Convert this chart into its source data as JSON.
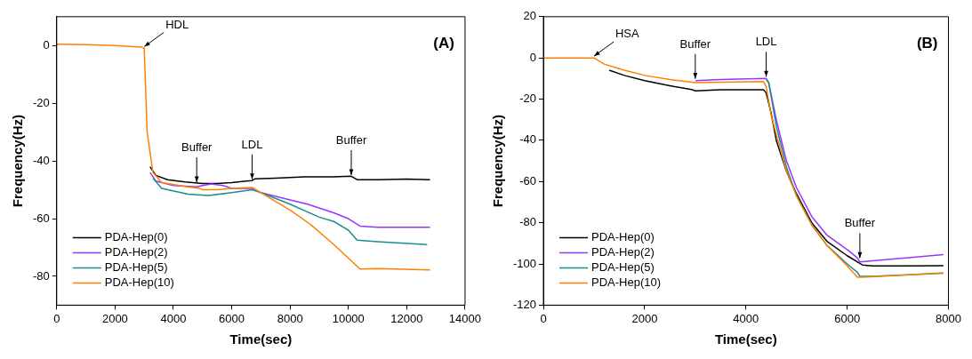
{
  "chart_data": [
    {
      "type": "line",
      "title": "(A)",
      "xlabel": "Time(sec)",
      "ylabel": "Frequency(Hz)",
      "xlim": [
        0,
        14000
      ],
      "xticks": [
        0,
        2000,
        4000,
        6000,
        8000,
        10000,
        12000,
        14000
      ],
      "ylim": [
        -90,
        10
      ],
      "yticks": [
        -80,
        -60,
        -40,
        -20,
        0
      ],
      "grid": false,
      "legend": "bottom left",
      "marker": "none",
      "line_style": "solid",
      "annotations": [
        {
          "text": "HDL",
          "x": 3000,
          "y": -1
        },
        {
          "text": "Buffer",
          "x": 4800,
          "y": -48
        },
        {
          "text": "LDL",
          "x": 6700,
          "y": -47
        },
        {
          "text": "Buffer",
          "x": 10100,
          "y": -45.5
        }
      ],
      "series": [
        {
          "name": "PDA-Hep(0)",
          "color": "#000000",
          "x": [
            3200,
            3400,
            3800,
            4400,
            5000,
            5500,
            6000,
            6500,
            6700,
            6800,
            7500,
            8500,
            9500,
            10100,
            10300,
            11000,
            12000,
            12800
          ],
          "values": [
            -42,
            -45,
            -46.5,
            -47.3,
            -47.8,
            -47.8,
            -47.5,
            -47,
            -46.8,
            -46.2,
            -46,
            -45.5,
            -45.5,
            -45.3,
            -46.5,
            -46.5,
            -46.3,
            -46.5
          ]
        },
        {
          "name": "PDA-Hep(2)",
          "color": "#9933ff",
          "x": [
            3200,
            3400,
            4000,
            4800,
            5000,
            5300,
            5700,
            6000,
            6700,
            7000,
            8000,
            8600,
            9500,
            10000,
            10400,
            11000,
            12800
          ],
          "values": [
            -44,
            -47,
            -48.5,
            -49,
            -48.5,
            -48,
            -48.5,
            -49.5,
            -49.5,
            -51,
            -53.5,
            -55,
            -58,
            -60,
            -62.6,
            -63,
            -63
          ]
        },
        {
          "name": "PDA-Hep(5)",
          "color": "#1a8f8f",
          "x": [
            3300,
            3600,
            4500,
            5200,
            6000,
            6700,
            7000,
            8000,
            9000,
            9500,
            10000,
            10300,
            11000,
            12700
          ],
          "values": [
            -46,
            -49.5,
            -51.5,
            -52,
            -51,
            -50,
            -51,
            -55,
            -59.5,
            -61,
            -64,
            -67.5,
            -68,
            -69
          ]
        },
        {
          "name": "PDA-Hep(10)",
          "color": "#ff8000",
          "x": [
            0,
            1000,
            2000,
            2900,
            3000,
            3100,
            3300,
            3600,
            4500,
            4900,
            5000,
            5500,
            6000,
            6700,
            7000,
            8000,
            8700,
            9500,
            10400,
            11000,
            12800
          ],
          "values": [
            0.5,
            0.3,
            0,
            -0.5,
            -1,
            -30,
            -44,
            -47.5,
            -49,
            -49.5,
            -50,
            -50,
            -49.5,
            -49.2,
            -51,
            -57,
            -62,
            -69,
            -77.5,
            -77.3,
            -77.8
          ]
        }
      ]
    },
    {
      "type": "line",
      "title": "(B)",
      "xlabel": "Time(sec)",
      "ylabel": "Frequency(Hz)",
      "xlim": [
        0,
        8000
      ],
      "xticks": [
        0,
        2000,
        4000,
        6000,
        8000
      ],
      "ylim": [
        -120,
        20
      ],
      "yticks": [
        -120,
        -100,
        -80,
        -60,
        -40,
        -20,
        0,
        20
      ],
      "grid": false,
      "legend": "bottom left",
      "marker": "none",
      "line_style": "solid",
      "annotations": [
        {
          "text": "HSA",
          "x": 1000,
          "y": 0
        },
        {
          "text": "Buffer",
          "x": 3000,
          "y": -11
        },
        {
          "text": "LDL",
          "x": 4400,
          "y": -10
        },
        {
          "text": "Buffer",
          "x": 6250,
          "y": -98
        }
      ],
      "series": [
        {
          "name": "PDA-Hep(0)",
          "color": "#000000",
          "x": [
            1300,
            1600,
            2000,
            2500,
            2950,
            3000,
            3500,
            4350,
            4400,
            4500,
            4600,
            4800,
            5000,
            5300,
            5600,
            6000,
            6300,
            6500,
            7900
          ],
          "values": [
            -6,
            -8.5,
            -11,
            -13.5,
            -15.5,
            -16,
            -15.5,
            -15.5,
            -17,
            -27,
            -40,
            -55,
            -66,
            -80,
            -89,
            -96,
            -100.5,
            -101,
            -100.8
          ]
        },
        {
          "name": "PDA-Hep(2)",
          "color": "#9933ff",
          "x": [
            3000,
            3500,
            4400,
            4450,
            4600,
            4800,
            5000,
            5300,
            5600,
            6000,
            6200,
            6250,
            6500,
            7900
          ],
          "values": [
            -11,
            -10.5,
            -10,
            -12,
            -30,
            -50,
            -63,
            -77,
            -86,
            -93,
            -97,
            -99,
            -98.5,
            -95.5
          ]
        },
        {
          "name": "PDA-Hep(5)",
          "color": "#1a8f8f",
          "x": [
            4400,
            4450,
            4600,
            4800,
            5000,
            5300,
            5600,
            6000,
            6200,
            6250,
            6500,
            7900
          ],
          "values": [
            -10.5,
            -12,
            -33,
            -53,
            -67,
            -81,
            -91,
            -100,
            -104,
            -106,
            -106,
            -104.5
          ]
        },
        {
          "name": "PDA-Hep(10)",
          "color": "#ff8000",
          "x": [
            0,
            1000,
            1200,
            1600,
            2000,
            2500,
            3000,
            3500,
            4350,
            4400,
            4500,
            4800,
            5000,
            5300,
            5600,
            6000,
            6200,
            6300,
            7900
          ],
          "values": [
            0,
            0,
            -3,
            -6,
            -8.5,
            -10.5,
            -12,
            -11.8,
            -11.5,
            -14,
            -28,
            -55,
            -67,
            -81,
            -91,
            -101,
            -106.5,
            -106.5,
            -104.3
          ]
        }
      ]
    }
  ]
}
